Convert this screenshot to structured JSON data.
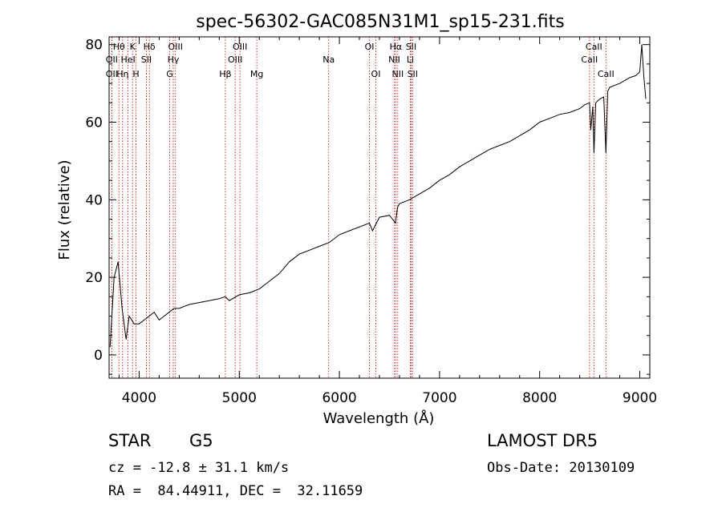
{
  "chart_data": {
    "type": "line",
    "title": "spec-56302-GAC085N31M1_sp15-231.fits",
    "xlabel": "Wavelength (Å)",
    "ylabel": "Flux (relative)",
    "xlim": [
      3700,
      9100
    ],
    "ylim": [
      -6,
      82
    ],
    "xticks": [
      4000,
      5000,
      6000,
      7000,
      8000,
      9000
    ],
    "yticks": [
      0,
      20,
      40,
      60,
      80
    ],
    "grid": false,
    "series": [
      {
        "x": [
          3710,
          3750,
          3790,
          3830,
          3870,
          3900,
          3950,
          4000,
          4050,
          4100,
          4150,
          4200,
          4250,
          4300,
          4350,
          4400,
          4500,
          4600,
          4700,
          4800,
          4860,
          4900,
          5000,
          5100,
          5200,
          5300,
          5400,
          5500,
          5600,
          5700,
          5800,
          5900,
          6000,
          6100,
          6200,
          6300,
          6330,
          6400,
          6500,
          6560,
          6580,
          6600,
          6700,
          6800,
          6900,
          7000,
          7100,
          7200,
          7300,
          7400,
          7500,
          7600,
          7700,
          7800,
          7900,
          8000,
          8100,
          8200,
          8300,
          8400,
          8450,
          8498,
          8510,
          8530,
          8542,
          8560,
          8600,
          8640,
          8662,
          8680,
          8700,
          8800,
          8900,
          8960,
          9000,
          9020,
          9040,
          9060
        ],
        "y": [
          2,
          20,
          24,
          12,
          4,
          10,
          8,
          8,
          9,
          10,
          11,
          9,
          10,
          11,
          12,
          12,
          13,
          13.5,
          14,
          14.5,
          15,
          14,
          15.5,
          16,
          17,
          19,
          21,
          24,
          26,
          27,
          28,
          29,
          31,
          32,
          33,
          34,
          32,
          35.5,
          36,
          34,
          38,
          39,
          40,
          41.5,
          43,
          45,
          46.5,
          48.5,
          50,
          51.5,
          53,
          54,
          55,
          56.5,
          58,
          60,
          61,
          62,
          62.5,
          63.5,
          64.5,
          65,
          58,
          64,
          52,
          65,
          66,
          66.5,
          52,
          68,
          69,
          70,
          71.5,
          72,
          73,
          80,
          72,
          66
        ]
      }
    ],
    "spectral_lines": [
      {
        "label": "Hθ",
        "row": 1,
        "wavelength": 3798
      },
      {
        "label": "OII",
        "row": 2,
        "wavelength": 3727
      },
      {
        "label": "OII",
        "row": 3,
        "wavelength": 3727
      },
      {
        "label": "Hη",
        "row": 3,
        "wavelength": 3835
      },
      {
        "label": "HeI",
        "row": 2,
        "wavelength": 3889
      },
      {
        "label": "K",
        "row": 1,
        "wavelength": 3934
      },
      {
        "label": "H",
        "row": 3,
        "wavelength": 3969
      },
      {
        "label": "SII",
        "row": 2,
        "wavelength": 4072
      },
      {
        "label": "Hδ",
        "row": 1,
        "wavelength": 4102
      },
      {
        "label": "OIII",
        "row": 1,
        "wavelength": 4363
      },
      {
        "label": "Hγ",
        "row": 2,
        "wavelength": 4341
      },
      {
        "label": "G",
        "row": 3,
        "wavelength": 4305
      },
      {
        "label": "Hβ",
        "row": 3,
        "wavelength": 4861
      },
      {
        "label": "OIII",
        "row": 1,
        "wavelength": 5007
      },
      {
        "label": "OIII",
        "row": 2,
        "wavelength": 4959
      },
      {
        "label": "Mg",
        "row": 3,
        "wavelength": 5175
      },
      {
        "label": "Na",
        "row": 2,
        "wavelength": 5893
      },
      {
        "label": "OI",
        "row": 1,
        "wavelength": 6300
      },
      {
        "label": "OI",
        "row": 3,
        "wavelength": 6364
      },
      {
        "label": "Hα",
        "row": 1,
        "wavelength": 6563
      },
      {
        "label": "NII",
        "row": 2,
        "wavelength": 6548
      },
      {
        "label": "NII",
        "row": 3,
        "wavelength": 6583
      },
      {
        "label": "SII",
        "row": 1,
        "wavelength": 6716
      },
      {
        "label": "Li",
        "row": 2,
        "wavelength": 6708
      },
      {
        "label": "SII",
        "row": 3,
        "wavelength": 6731
      },
      {
        "label": "CaII",
        "row": 1,
        "wavelength": 8542
      },
      {
        "label": "CaII",
        "row": 2,
        "wavelength": 8498
      },
      {
        "label": "CaII",
        "row": 3,
        "wavelength": 8662
      }
    ],
    "line_color": "#000000",
    "marker_color": "#cc0000"
  },
  "footer": {
    "object_class": "STAR",
    "subclass": "G5",
    "survey": "LAMOST DR5",
    "cz": "cz = -12.8 ± 31.1 km/s",
    "obs_date": "Obs-Date: 20130109",
    "radec": "RA =  84.44911, DEC =  32.11659"
  }
}
